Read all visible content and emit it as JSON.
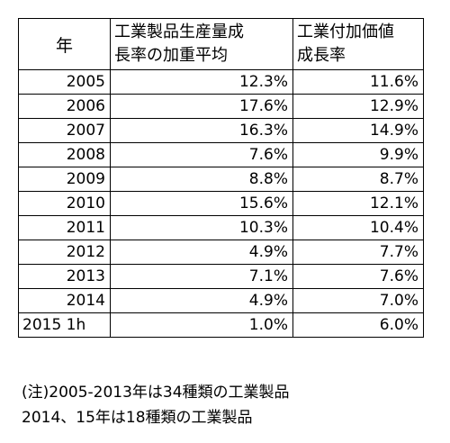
{
  "table": {
    "headers": {
      "year": "年",
      "production_line1": "工業製品生産量成",
      "production_line2": "長率の加重平均",
      "value_added_line1": "工業付加価値",
      "value_added_line2": "成長率"
    },
    "rows": [
      {
        "year": "2005",
        "production": "12.3%",
        "value_added": "11.6%"
      },
      {
        "year": "2006",
        "production": "17.6%",
        "value_added": "12.9%"
      },
      {
        "year": "2007",
        "production": "16.3%",
        "value_added": "14.9%"
      },
      {
        "year": "2008",
        "production": "7.6%",
        "value_added": "9.9%"
      },
      {
        "year": "2009",
        "production": "8.8%",
        "value_added": "8.7%"
      },
      {
        "year": "2010",
        "production": "15.6%",
        "value_added": "12.1%"
      },
      {
        "year": "2011",
        "production": "10.3%",
        "value_added": "10.4%"
      },
      {
        "year": "2012",
        "production": "4.9%",
        "value_added": "7.7%"
      },
      {
        "year": "2013",
        "production": "7.1%",
        "value_added": "7.6%"
      },
      {
        "year": "2014",
        "production": "4.9%",
        "value_added": "7.0%"
      },
      {
        "year": "2015 1h",
        "production": "1.0%",
        "value_added": "6.0%"
      }
    ]
  },
  "notes": {
    "line1": "(注)2005-2013年は34種類の工業製品",
    "line2": "2014、15年は18種類の工業製品"
  }
}
